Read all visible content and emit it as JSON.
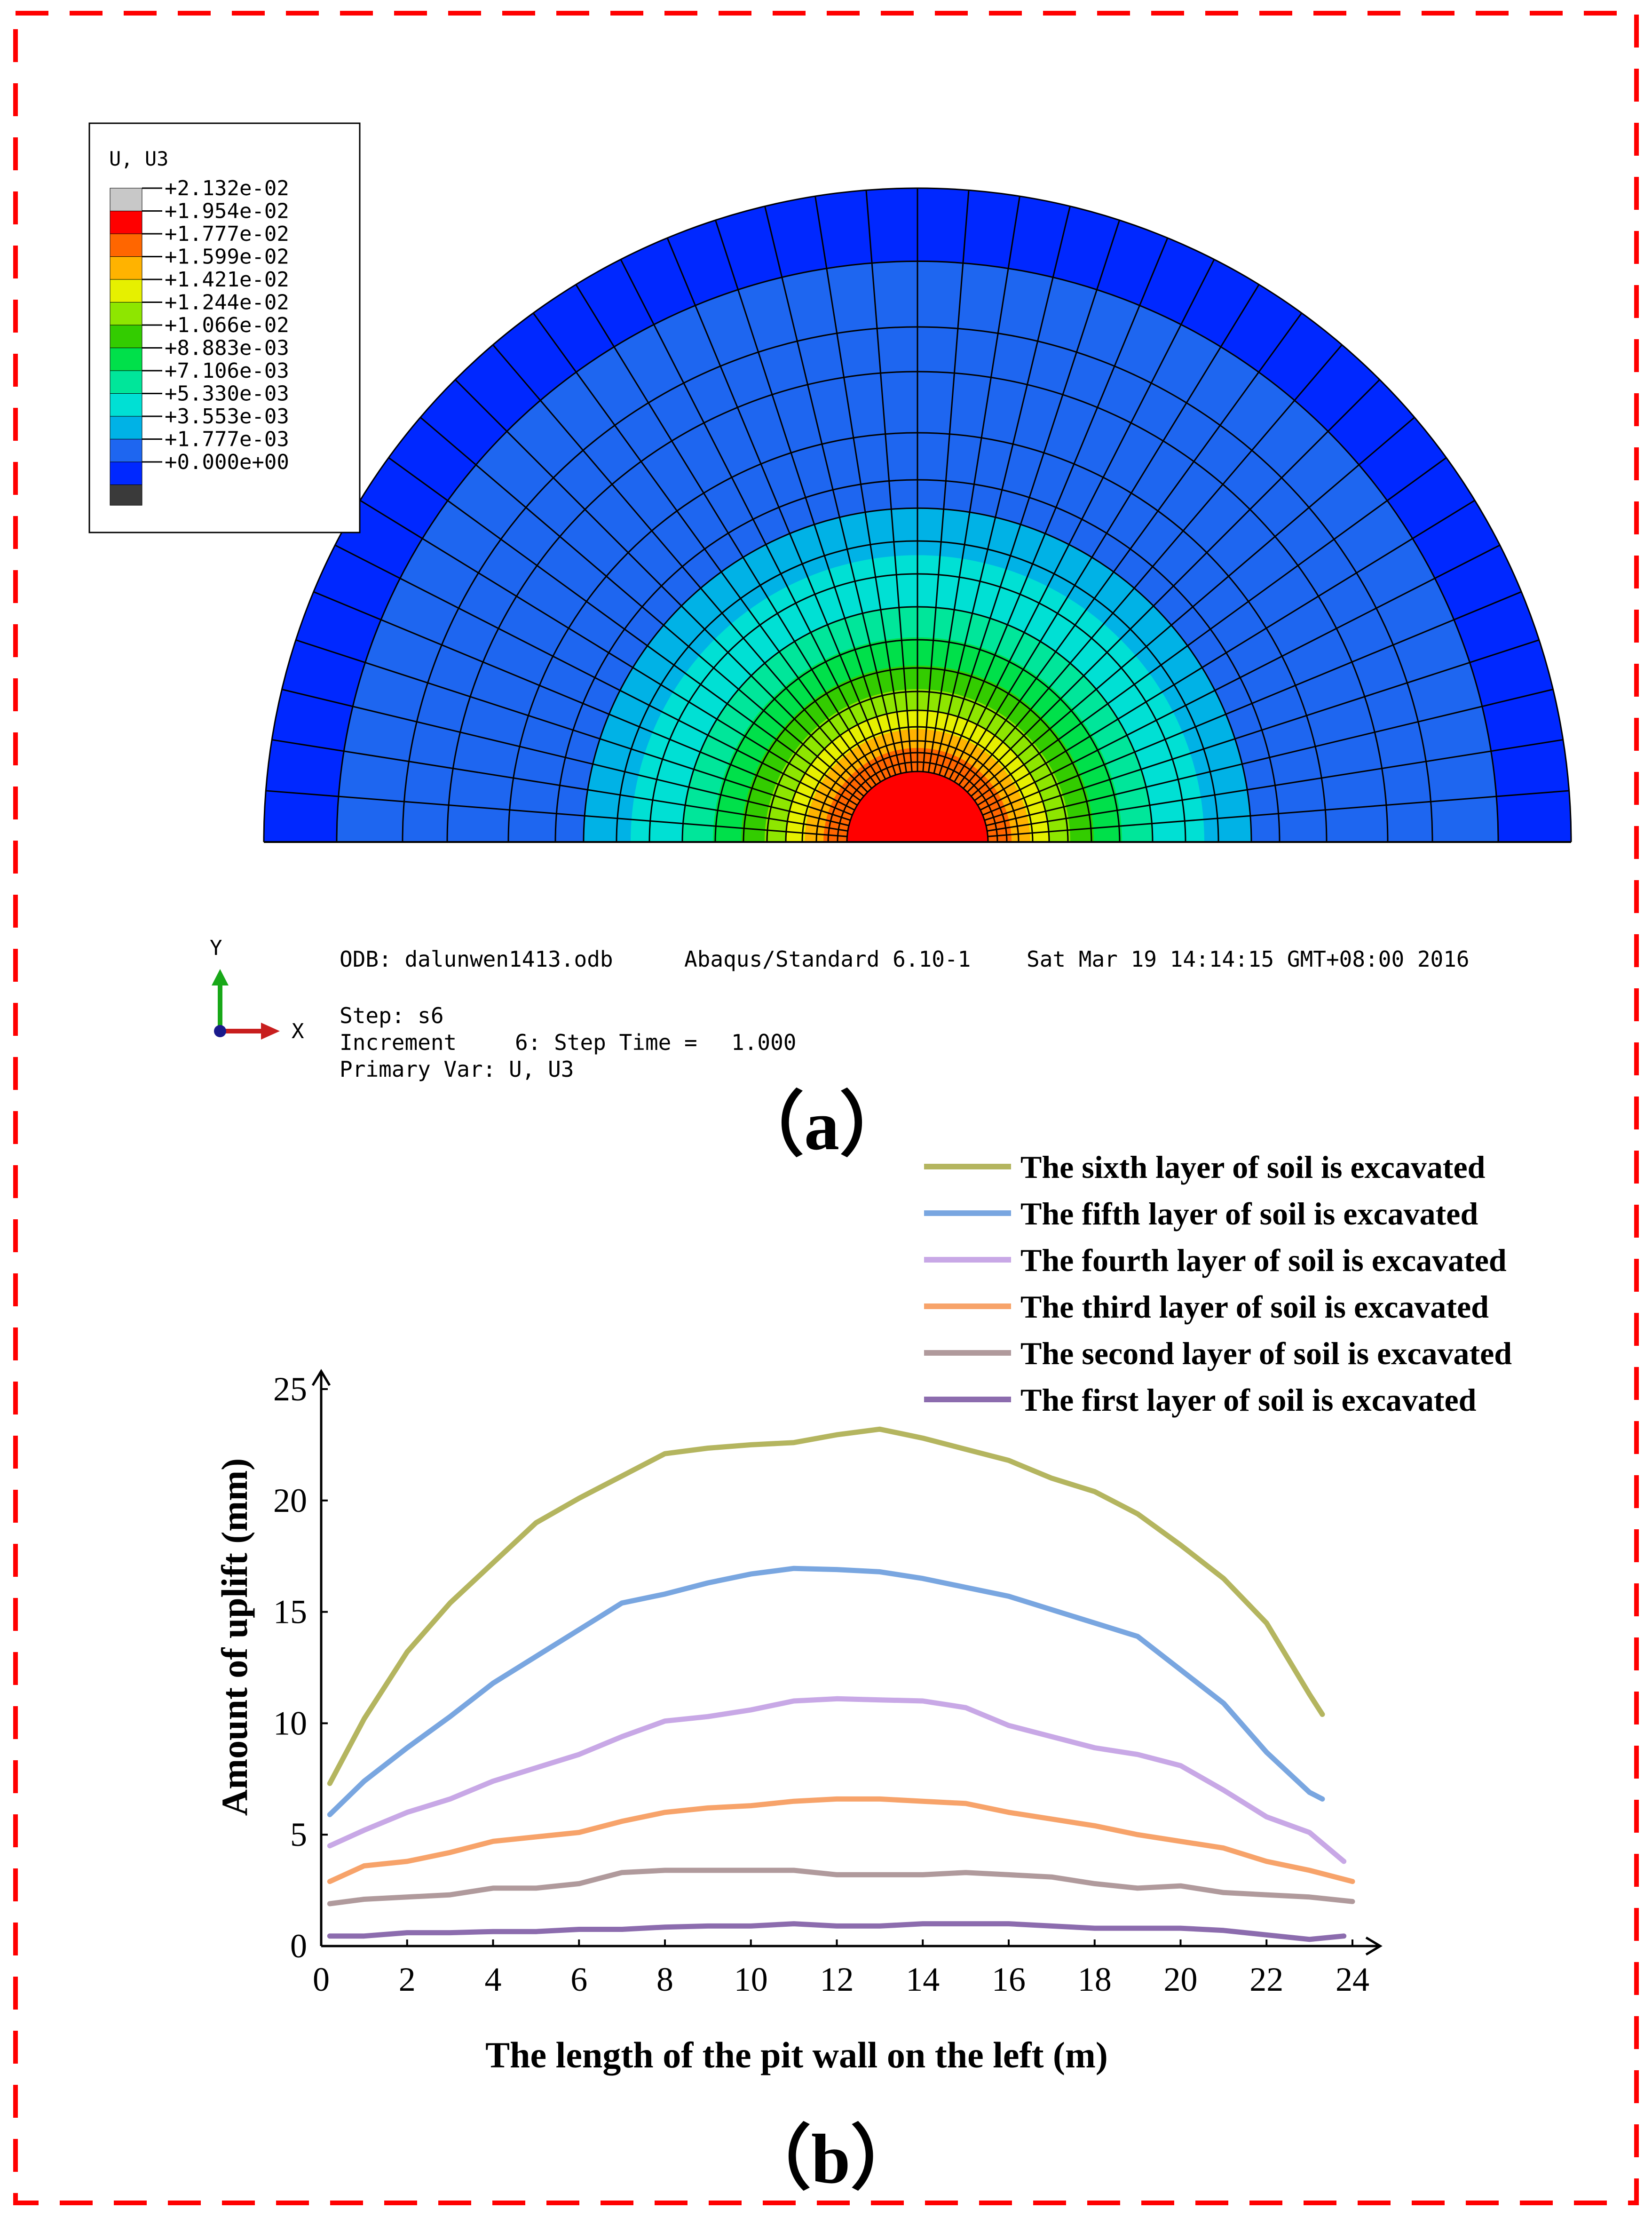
{
  "panel_a": {
    "label": "（a）",
    "legend": {
      "title": "U, U3",
      "entries": [
        {
          "label": "+2.132e-02",
          "color": "#c8c8c8"
        },
        {
          "label": "+1.954e-02",
          "color": "#ff0000"
        },
        {
          "label": "+1.777e-02",
          "color": "#ff6600"
        },
        {
          "label": "+1.599e-02",
          "color": "#ffb300"
        },
        {
          "label": "+1.421e-02",
          "color": "#e6f000"
        },
        {
          "label": "+1.244e-02",
          "color": "#8ee600"
        },
        {
          "label": "+1.066e-02",
          "color": "#33cc00"
        },
        {
          "label": "+8.883e-03",
          "color": "#00e04a"
        },
        {
          "label": "+7.106e-03",
          "color": "#00e69a"
        },
        {
          "label": "+5.330e-03",
          "color": "#00e0d4"
        },
        {
          "label": "+3.553e-03",
          "color": "#00b2e6"
        },
        {
          "label": "+1.777e-03",
          "color": "#1e66f0"
        },
        {
          "label": "+0.000e+00",
          "color": "#0028ff"
        }
      ]
    },
    "triad": {
      "y_label": "Y",
      "x_label": "X"
    },
    "info": {
      "odb": "ODB: dalunwen1413.odb",
      "solver": "Abaqus/Standard 6.10-1",
      "date": "Sat Mar 19 14:14:15 GMT+08:00 2016",
      "step": "Step: s6",
      "increment": "Increment",
      "increment_value": "6: Step Time =",
      "step_time": "1.000",
      "primary_var": "Primary Var: U, U3"
    }
  },
  "panel_b": {
    "label": "（b）"
  },
  "chart_data": {
    "type": "line",
    "title": "",
    "xlabel": "The length of the pit wall on the left (m)",
    "ylabel": "Amount of uplift (mm)",
    "xlim": [
      0,
      25
    ],
    "ylim": [
      0,
      25
    ],
    "x_ticks": [
      0,
      2,
      4,
      6,
      8,
      10,
      12,
      14,
      16,
      18,
      20,
      22,
      24
    ],
    "y_ticks": [
      0,
      5,
      10,
      15,
      20,
      25
    ],
    "legend_position": "top-right",
    "series": [
      {
        "name": "The sixth layer of soil is excavated",
        "color": "#b4b55f",
        "points": [
          [
            0.2,
            7.3
          ],
          [
            1,
            10.2
          ],
          [
            2,
            13.2
          ],
          [
            3,
            15.4
          ],
          [
            4,
            17.2
          ],
          [
            5,
            19.0
          ],
          [
            6,
            20.1
          ],
          [
            7,
            21.1
          ],
          [
            8,
            22.1
          ],
          [
            9,
            22.35
          ],
          [
            10,
            22.5
          ],
          [
            11,
            22.6
          ],
          [
            12,
            22.95
          ],
          [
            13,
            23.2
          ],
          [
            14,
            22.8
          ],
          [
            15,
            22.3
          ],
          [
            16,
            21.8
          ],
          [
            17,
            21.0
          ],
          [
            18,
            20.4
          ],
          [
            19,
            19.4
          ],
          [
            20,
            18.0
          ],
          [
            21,
            16.5
          ],
          [
            22,
            14.5
          ],
          [
            23,
            11.3
          ],
          [
            23.3,
            10.4
          ]
        ]
      },
      {
        "name": "The fifth layer of soil is excavated",
        "color": "#79a6e0",
        "points": [
          [
            0.2,
            5.9
          ],
          [
            1,
            7.4
          ],
          [
            2,
            8.9
          ],
          [
            3,
            10.3
          ],
          [
            4,
            11.8
          ],
          [
            5,
            13.0
          ],
          [
            6,
            14.2
          ],
          [
            7,
            15.4
          ],
          [
            8,
            15.8
          ],
          [
            9,
            16.3
          ],
          [
            10,
            16.7
          ],
          [
            11,
            16.95
          ],
          [
            12,
            16.9
          ],
          [
            13,
            16.8
          ],
          [
            14,
            16.5
          ],
          [
            15,
            16.1
          ],
          [
            16,
            15.7
          ],
          [
            17,
            15.1
          ],
          [
            18,
            14.5
          ],
          [
            19,
            13.9
          ],
          [
            20,
            12.4
          ],
          [
            21,
            10.9
          ],
          [
            22,
            8.7
          ],
          [
            23,
            6.9
          ],
          [
            23.3,
            6.6
          ]
        ]
      },
      {
        "name": "The fourth layer of soil is excavated",
        "color": "#c8a8e6",
        "points": [
          [
            0.2,
            4.5
          ],
          [
            1,
            5.2
          ],
          [
            2,
            6.0
          ],
          [
            3,
            6.6
          ],
          [
            4,
            7.4
          ],
          [
            5,
            8.0
          ],
          [
            6,
            8.6
          ],
          [
            7,
            9.4
          ],
          [
            8,
            10.1
          ],
          [
            9,
            10.3
          ],
          [
            10,
            10.6
          ],
          [
            11,
            11.0
          ],
          [
            12,
            11.1
          ],
          [
            13,
            11.05
          ],
          [
            14,
            11.0
          ],
          [
            15,
            10.7
          ],
          [
            16,
            9.9
          ],
          [
            17,
            9.4
          ],
          [
            18,
            8.9
          ],
          [
            19,
            8.6
          ],
          [
            20,
            8.1
          ],
          [
            21,
            7.0
          ],
          [
            22,
            5.8
          ],
          [
            23,
            5.1
          ],
          [
            23.8,
            3.8
          ]
        ]
      },
      {
        "name": "The third layer of soil is excavated",
        "color": "#f7a36a",
        "points": [
          [
            0.2,
            2.9
          ],
          [
            1,
            3.6
          ],
          [
            2,
            3.8
          ],
          [
            3,
            4.2
          ],
          [
            4,
            4.7
          ],
          [
            5,
            4.9
          ],
          [
            6,
            5.1
          ],
          [
            7,
            5.6
          ],
          [
            8,
            6.0
          ],
          [
            9,
            6.2
          ],
          [
            10,
            6.3
          ],
          [
            11,
            6.5
          ],
          [
            12,
            6.6
          ],
          [
            13,
            6.6
          ],
          [
            14,
            6.5
          ],
          [
            15,
            6.4
          ],
          [
            16,
            6.0
          ],
          [
            17,
            5.7
          ],
          [
            18,
            5.4
          ],
          [
            19,
            5.0
          ],
          [
            20,
            4.7
          ],
          [
            21,
            4.4
          ],
          [
            22,
            3.8
          ],
          [
            23,
            3.4
          ],
          [
            24,
            2.9
          ]
        ]
      },
      {
        "name": "The second layer of soil is excavated",
        "color": "#b09a9c",
        "points": [
          [
            0.2,
            1.9
          ],
          [
            1,
            2.1
          ],
          [
            2,
            2.2
          ],
          [
            3,
            2.3
          ],
          [
            4,
            2.6
          ],
          [
            5,
            2.6
          ],
          [
            6,
            2.8
          ],
          [
            7,
            3.3
          ],
          [
            8,
            3.4
          ],
          [
            9,
            3.4
          ],
          [
            10,
            3.4
          ],
          [
            11,
            3.4
          ],
          [
            12,
            3.2
          ],
          [
            13,
            3.2
          ],
          [
            14,
            3.2
          ],
          [
            15,
            3.3
          ],
          [
            16,
            3.2
          ],
          [
            17,
            3.1
          ],
          [
            18,
            2.8
          ],
          [
            19,
            2.6
          ],
          [
            20,
            2.7
          ],
          [
            21,
            2.4
          ],
          [
            22,
            2.3
          ],
          [
            23,
            2.2
          ],
          [
            24,
            2.0
          ]
        ]
      },
      {
        "name": "The first layer of soil is excavated",
        "color": "#8c6cae",
        "points": [
          [
            0.2,
            0.45
          ],
          [
            1,
            0.45
          ],
          [
            2,
            0.6
          ],
          [
            3,
            0.6
          ],
          [
            4,
            0.65
          ],
          [
            5,
            0.65
          ],
          [
            6,
            0.75
          ],
          [
            7,
            0.75
          ],
          [
            8,
            0.85
          ],
          [
            9,
            0.9
          ],
          [
            10,
            0.9
          ],
          [
            11,
            1.0
          ],
          [
            12,
            0.9
          ],
          [
            13,
            0.9
          ],
          [
            14,
            1.0
          ],
          [
            15,
            1.0
          ],
          [
            16,
            1.0
          ],
          [
            17,
            0.9
          ],
          [
            18,
            0.8
          ],
          [
            19,
            0.8
          ],
          [
            20,
            0.8
          ],
          [
            21,
            0.7
          ],
          [
            22,
            0.5
          ],
          [
            23,
            0.3
          ],
          [
            23.8,
            0.45
          ]
        ]
      }
    ]
  }
}
